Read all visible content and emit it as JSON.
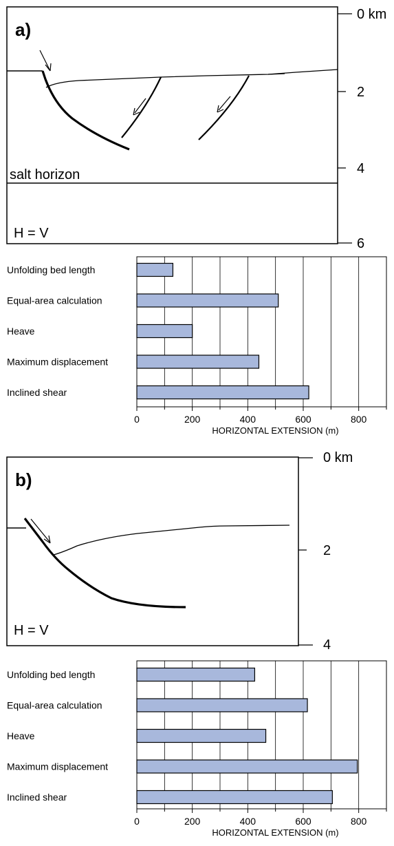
{
  "panel_a": {
    "label": "a)",
    "layer_label": "salt horizon",
    "scale_label": "H = V",
    "depth_ticks": [
      "0 km",
      "2",
      "4",
      "6"
    ]
  },
  "panel_b": {
    "label": "b)",
    "scale_label": "H = V",
    "depth_ticks": [
      "0 km",
      "2",
      "4"
    ]
  },
  "chart_data": [
    {
      "type": "bar",
      "orientation": "horizontal",
      "categories": [
        "Unfolding bed length",
        "Equal-area calculation",
        "Heave",
        "Maximum displacement",
        "Inclined shear"
      ],
      "values": [
        130,
        510,
        200,
        440,
        620
      ],
      "xlabel": "HORIZONTAL EXTENSION (m)",
      "xticks": [
        "0",
        "200",
        "400",
        "600",
        "800"
      ],
      "xlim": [
        0,
        900
      ],
      "grid": true,
      "colors": {
        "bar": "#a8b8dc",
        "edge": "#000000"
      }
    },
    {
      "type": "bar",
      "orientation": "horizontal",
      "categories": [
        "Unfolding bed length",
        "Equal-area calculation",
        "Heave",
        "Maximum displacement",
        "Inclined shear"
      ],
      "values": [
        425,
        615,
        465,
        795,
        705
      ],
      "xlabel": "HORIZONTAL EXTENSION (m)",
      "xticks": [
        "0",
        "200",
        "400",
        "600",
        "800"
      ],
      "xlim": [
        0,
        900
      ],
      "grid": true,
      "colors": {
        "bar": "#a8b8dc",
        "edge": "#000000"
      }
    }
  ]
}
